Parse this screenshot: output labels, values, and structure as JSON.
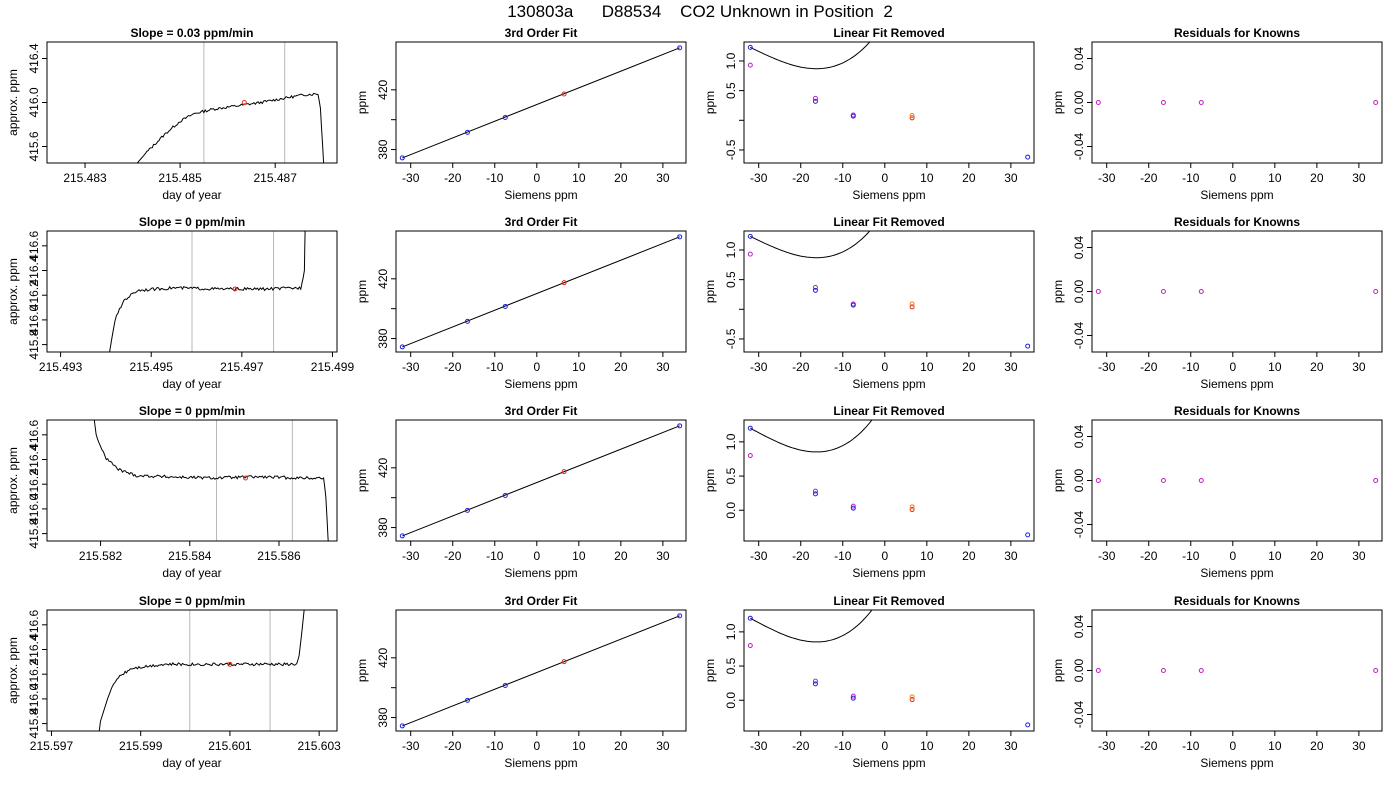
{
  "main_title": "130803a      D88534    CO2 Unknown in Position  2",
  "colors": {
    "known_point": "#2020e0",
    "unknown_point": "#e03020",
    "raw_point": "#c020c0",
    "unknown_alt": "#f08020",
    "vline": "#b8b8b8",
    "curve": "#000000"
  },
  "chart_data": [
    {
      "type": "line",
      "row": 1,
      "title": "Slope =  0.03  ppm/min",
      "xlabel": "day of year",
      "ylabel": "approx. ppm",
      "xlim": [
        215.4822,
        215.4883
      ],
      "ylim": [
        415.45,
        416.55
      ],
      "xticks": [
        215.483,
        215.485,
        215.487
      ],
      "xtick_labels": [
        "215.483",
        "215.485",
        "215.487"
      ],
      "yticks": [
        415.6,
        416.0,
        416.4
      ],
      "ytick_labels": [
        "415.6",
        "416.0",
        "416.4"
      ],
      "vlines": [
        215.4855,
        215.4872
      ],
      "marker": {
        "x": 215.48635,
        "y": 416.0
      },
      "trace": [
        [
          215.4838,
          415.3
        ],
        [
          215.4843,
          415.55
        ],
        [
          215.4847,
          415.72
        ],
        [
          215.485,
          415.83
        ],
        [
          215.4853,
          415.9
        ],
        [
          215.4857,
          415.94
        ],
        [
          215.4862,
          415.97
        ],
        [
          215.4867,
          416.0
        ],
        [
          215.4872,
          416.04
        ],
        [
          215.4876,
          416.07
        ],
        [
          215.4879,
          416.08
        ],
        [
          215.48795,
          415.95
        ],
        [
          215.488,
          415.6
        ],
        [
          215.48805,
          415.2
        ]
      ],
      "noise": 0.012
    },
    {
      "type": "scatter",
      "row": 1,
      "title": "3rd Order Fit",
      "xlabel": "Siemens ppm",
      "ylabel": "ppm",
      "xlim": [
        -33.5,
        35.5
      ],
      "ylim": [
        371,
        452
      ],
      "xticks": [
        -30,
        -20,
        -10,
        0,
        10,
        20,
        30
      ],
      "xtick_labels": [
        "-30",
        "-20",
        "-10",
        "0",
        "10",
        "20",
        "30"
      ],
      "yticks": [
        380,
        400,
        420
      ],
      "ytick_labels": [
        "380",
        "",
        "420"
      ],
      "fit_line": [
        [
          -32,
          374.4
        ],
        [
          34,
          448.1
        ]
      ],
      "known_points": [
        [
          -32,
          374.4
        ],
        [
          -16.5,
          391.5
        ],
        [
          -7.5,
          401.5
        ],
        [
          34,
          448.1
        ]
      ],
      "unknown_points": [
        [
          6.5,
          417.2
        ]
      ]
    },
    {
      "type": "scatter",
      "row": 1,
      "title": "Linear Fit Removed",
      "xlabel": "Siemens ppm",
      "ylabel": "ppm",
      "xlim": [
        -33.5,
        35.5
      ],
      "ylim": [
        -0.72,
        1.32
      ],
      "xticks": [
        -30,
        -20,
        -10,
        0,
        10,
        20,
        30
      ],
      "xtick_labels": [
        "-30",
        "-20",
        "-10",
        "0",
        "10",
        "20",
        "30"
      ],
      "yticks": [
        -0.5,
        0.0,
        0.5,
        1.0
      ],
      "ytick_labels": [
        "-0.5",
        "",
        "0.5",
        "1.0"
      ],
      "curve": [
        -32.0,
        1.23,
        -0.0344,
        0.0,
        4.65e-05
      ],
      "known_points": [
        [
          -32,
          1.23
        ],
        [
          -16.5,
          0.32
        ],
        [
          -7.5,
          0.07
        ],
        [
          34,
          -0.62
        ]
      ],
      "raw_points": [
        [
          -32,
          0.93
        ],
        [
          -16.5,
          0.37
        ],
        [
          -7.5,
          0.09
        ]
      ],
      "unknown_points": [
        [
          6.5,
          0.04
        ],
        [
          6.5,
          0.08
        ]
      ]
    },
    {
      "type": "scatter",
      "row": 1,
      "title": "Residuals for Knowns",
      "xlabel": "Siemens ppm",
      "ylabel": "ppm",
      "xlim": [
        -33.5,
        35.5
      ],
      "ylim": [
        -0.055,
        0.055
      ],
      "xticks": [
        -30,
        -20,
        -10,
        0,
        10,
        20,
        30
      ],
      "xtick_labels": [
        "-30",
        "-20",
        "-10",
        "0",
        "10",
        "20",
        "30"
      ],
      "yticks": [
        -0.04,
        0.0,
        0.04
      ],
      "ytick_labels": [
        "-0.04",
        "0.00",
        "0.04"
      ],
      "raw_points": [
        [
          -32,
          0
        ],
        [
          -16.5,
          0
        ],
        [
          -7.5,
          0
        ],
        [
          34,
          0
        ]
      ]
    },
    {
      "type": "line",
      "row": 2,
      "title": "Slope =  0  ppm/min",
      "xlabel": "day of year",
      "ylabel": "approx. ppm",
      "xlim": [
        215.4927,
        215.4991
      ],
      "ylim": [
        415.74,
        416.72
      ],
      "xticks": [
        215.493,
        215.495,
        215.497,
        215.499
      ],
      "xtick_labels": [
        "215.493",
        "215.495",
        "215.497",
        "215.499"
      ],
      "yticks": [
        415.8,
        416.0,
        416.2,
        416.4,
        416.6
      ],
      "ytick_labels": [
        "415.8",
        "416.0",
        "416.2",
        "416.4",
        "416.6"
      ],
      "vlines": [
        215.4959,
        215.4977
      ],
      "marker": {
        "x": 215.49685,
        "y": 416.25
      },
      "trace": [
        [
          215.494,
          415.55
        ],
        [
          215.4941,
          415.78
        ],
        [
          215.4942,
          416.0
        ],
        [
          215.4944,
          416.16
        ],
        [
          215.4947,
          416.24
        ],
        [
          215.4955,
          416.26
        ],
        [
          215.4965,
          416.25
        ],
        [
          215.4975,
          416.25
        ],
        [
          215.4983,
          416.26
        ],
        [
          215.49838,
          416.4
        ],
        [
          215.4984,
          416.8
        ]
      ],
      "noise": 0.012
    },
    {
      "type": "scatter",
      "row": 2,
      "title": "3rd Order Fit",
      "xlabel": "Siemens ppm",
      "ylabel": "ppm",
      "xlim": [
        -33.5,
        35.5
      ],
      "ylim": [
        371,
        452
      ],
      "xticks": [
        -30,
        -20,
        -10,
        0,
        10,
        20,
        30
      ],
      "xtick_labels": [
        "-30",
        "-20",
        "-10",
        "0",
        "10",
        "20",
        "30"
      ],
      "yticks": [
        380,
        400,
        420
      ],
      "ytick_labels": [
        "380",
        "",
        "420"
      ],
      "fit_line": [
        [
          -32,
          374.4
        ],
        [
          34,
          448.1
        ]
      ],
      "known_points": [
        [
          -32,
          374.4
        ],
        [
          -16.5,
          391.5
        ],
        [
          -7.5,
          401.5
        ],
        [
          34,
          448.1
        ]
      ],
      "unknown_points": [
        [
          6.5,
          417.4
        ]
      ]
    },
    {
      "type": "scatter",
      "row": 2,
      "title": "Linear Fit Removed",
      "xlabel": "Siemens ppm",
      "ylabel": "ppm",
      "xlim": [
        -33.5,
        35.5
      ],
      "ylim": [
        -0.72,
        1.32
      ],
      "xticks": [
        -30,
        -20,
        -10,
        0,
        10,
        20,
        30
      ],
      "xtick_labels": [
        "-30",
        "-20",
        "-10",
        "0",
        "10",
        "20",
        "30"
      ],
      "yticks": [
        -0.5,
        0.0,
        0.5,
        1.0
      ],
      "ytick_labels": [
        "-0.5",
        "",
        "0.5",
        "1.0"
      ],
      "curve": [
        -32.0,
        1.23,
        -0.0344,
        0.0,
        4.65e-05
      ],
      "known_points": [
        [
          -32,
          1.23
        ],
        [
          -16.5,
          0.32
        ],
        [
          -7.5,
          0.07
        ],
        [
          34,
          -0.62
        ]
      ],
      "raw_points": [
        [
          -32,
          0.93
        ],
        [
          -16.5,
          0.37
        ],
        [
          -7.5,
          0.09
        ]
      ],
      "unknown_points": [
        [
          6.5,
          0.04
        ],
        [
          6.5,
          0.09
        ]
      ]
    },
    {
      "type": "scatter",
      "row": 2,
      "title": "Residuals for Knowns",
      "xlabel": "Siemens ppm",
      "ylabel": "ppm",
      "xlim": [
        -33.5,
        35.5
      ],
      "ylim": [
        -0.055,
        0.055
      ],
      "xticks": [
        -30,
        -20,
        -10,
        0,
        10,
        20,
        30
      ],
      "xtick_labels": [
        "-30",
        "-20",
        "-10",
        "0",
        "10",
        "20",
        "30"
      ],
      "yticks": [
        -0.04,
        0.0,
        0.04
      ],
      "ytick_labels": [
        "-0.04",
        "0.00",
        "0.04"
      ],
      "raw_points": [
        [
          -32,
          0
        ],
        [
          -16.5,
          0
        ],
        [
          -7.5,
          0
        ],
        [
          34,
          0
        ]
      ]
    },
    {
      "type": "line",
      "row": 3,
      "title": "Slope =  0  ppm/min",
      "xlabel": "day of year",
      "ylabel": "approx. ppm",
      "xlim": [
        215.5808,
        215.5873
      ],
      "ylim": [
        415.74,
        416.72
      ],
      "xticks": [
        215.582,
        215.584,
        215.586
      ],
      "xtick_labels": [
        "215.582",
        "215.584",
        "215.586"
      ],
      "yticks": [
        415.8,
        416.0,
        416.2,
        416.4,
        416.6
      ],
      "ytick_labels": [
        "415.8",
        "416.0",
        "416.2",
        "416.4",
        "416.6"
      ],
      "vlines": [
        215.5846,
        215.5863
      ],
      "marker": {
        "x": 215.58525,
        "y": 416.25
      },
      "trace": [
        [
          215.5818,
          416.9
        ],
        [
          215.5819,
          416.6
        ],
        [
          215.5821,
          416.42
        ],
        [
          215.5824,
          416.32
        ],
        [
          215.5828,
          416.27
        ],
        [
          215.5835,
          416.26
        ],
        [
          215.5845,
          416.25
        ],
        [
          215.5855,
          416.26
        ],
        [
          215.5865,
          416.25
        ],
        [
          215.587,
          416.25
        ],
        [
          215.58705,
          416.1
        ],
        [
          215.5871,
          415.75
        ],
        [
          215.58715,
          415.6
        ]
      ],
      "noise": 0.012
    },
    {
      "type": "scatter",
      "row": 3,
      "title": "3rd Order Fit",
      "xlabel": "Siemens ppm",
      "ylabel": "ppm",
      "xlim": [
        -33.5,
        35.5
      ],
      "ylim": [
        371,
        452
      ],
      "xticks": [
        -30,
        -20,
        -10,
        0,
        10,
        20,
        30
      ],
      "xtick_labels": [
        "-30",
        "-20",
        "-10",
        "0",
        "10",
        "20",
        "30"
      ],
      "yticks": [
        380,
        400,
        420
      ],
      "ytick_labels": [
        "380",
        "",
        "420"
      ],
      "fit_line": [
        [
          -32,
          374.4
        ],
        [
          34,
          448.1
        ]
      ],
      "known_points": [
        [
          -32,
          374.4
        ],
        [
          -16.5,
          391.5
        ],
        [
          -7.5,
          401.5
        ],
        [
          34,
          448.1
        ]
      ],
      "unknown_points": [
        [
          6.5,
          417.4
        ]
      ]
    },
    {
      "type": "scatter",
      "row": 3,
      "title": "Linear Fit Removed",
      "xlabel": "Siemens ppm",
      "ylabel": "ppm",
      "xlim": [
        -33.5,
        35.5
      ],
      "ylim": [
        -0.45,
        1.32
      ],
      "xticks": [
        -30,
        -20,
        -10,
        0,
        10,
        20,
        30
      ],
      "xtick_labels": [
        "-30",
        "-20",
        "-10",
        "0",
        "10",
        "20",
        "30"
      ],
      "yticks": [
        0.0,
        0.5,
        1.0
      ],
      "ytick_labels": [
        "0.0",
        "0.5",
        "1.0"
      ],
      "curve": [
        -32.0,
        1.2,
        -0.0331,
        0.0,
        4.45e-05
      ],
      "known_points": [
        [
          -32,
          1.2
        ],
        [
          -16.5,
          0.24
        ],
        [
          -7.5,
          0.03
        ],
        [
          34,
          -0.36
        ]
      ],
      "raw_points": [
        [
          -32,
          0.8
        ],
        [
          -16.5,
          0.28
        ],
        [
          -7.5,
          0.06
        ]
      ],
      "unknown_points": [
        [
          6.5,
          0.01
        ],
        [
          6.5,
          0.05
        ]
      ]
    },
    {
      "type": "scatter",
      "row": 3,
      "title": "Residuals for Knowns",
      "xlabel": "Siemens ppm",
      "ylabel": "ppm",
      "xlim": [
        -33.5,
        35.5
      ],
      "ylim": [
        -0.055,
        0.055
      ],
      "xticks": [
        -30,
        -20,
        -10,
        0,
        10,
        20,
        30
      ],
      "xtick_labels": [
        "-30",
        "-20",
        "-10",
        "0",
        "10",
        "20",
        "30"
      ],
      "yticks": [
        -0.04,
        0.0,
        0.04
      ],
      "ytick_labels": [
        "-0.04",
        "0.00",
        "0.04"
      ],
      "raw_points": [
        [
          -32,
          0
        ],
        [
          -16.5,
          0
        ],
        [
          -7.5,
          0
        ],
        [
          34,
          0
        ]
      ]
    },
    {
      "type": "line",
      "row": 4,
      "title": "Slope =  0  ppm/min",
      "xlabel": "day of year",
      "ylabel": "approx. ppm",
      "xlim": [
        215.5969,
        215.6034
      ],
      "ylim": [
        415.74,
        416.72
      ],
      "xticks": [
        215.597,
        215.599,
        215.601,
        215.603
      ],
      "xtick_labels": [
        "215.597",
        "215.599",
        "215.601",
        "215.603"
      ],
      "yticks": [
        415.8,
        416.0,
        416.2,
        416.4,
        416.6
      ],
      "ytick_labels": [
        "415.8",
        "416.0",
        "416.2",
        "416.4",
        "416.6"
      ],
      "vlines": [
        215.6001,
        215.6019
      ],
      "marker": {
        "x": 215.601,
        "y": 416.28
      },
      "trace": [
        [
          215.598,
          415.55
        ],
        [
          215.5981,
          415.82
        ],
        [
          215.5983,
          416.05
        ],
        [
          215.5985,
          416.18
        ],
        [
          215.5988,
          416.25
        ],
        [
          215.5995,
          416.28
        ],
        [
          215.6005,
          416.28
        ],
        [
          215.6015,
          416.28
        ],
        [
          215.6025,
          416.28
        ],
        [
          215.60255,
          416.35
        ],
        [
          215.60263,
          416.6
        ],
        [
          215.6027,
          416.85
        ]
      ],
      "noise": 0.012
    },
    {
      "type": "scatter",
      "row": 4,
      "title": "3rd Order Fit",
      "xlabel": "Siemens ppm",
      "ylabel": "ppm",
      "xlim": [
        -33.5,
        35.5
      ],
      "ylim": [
        371,
        452
      ],
      "xticks": [
        -30,
        -20,
        -10,
        0,
        10,
        20,
        30
      ],
      "xtick_labels": [
        "-30",
        "-20",
        "-10",
        "0",
        "10",
        "20",
        "30"
      ],
      "yticks": [
        380,
        400,
        420
      ],
      "ytick_labels": [
        "380",
        "",
        "420"
      ],
      "fit_line": [
        [
          -32,
          374.4
        ],
        [
          34,
          448.1
        ]
      ],
      "known_points": [
        [
          -32,
          374.4
        ],
        [
          -16.5,
          391.5
        ],
        [
          -7.5,
          401.5
        ],
        [
          34,
          448.1
        ]
      ],
      "unknown_points": [
        [
          6.5,
          417.4
        ]
      ]
    },
    {
      "type": "scatter",
      "row": 4,
      "title": "Linear Fit Removed",
      "xlabel": "Siemens ppm",
      "ylabel": "ppm",
      "xlim": [
        -33.5,
        35.5
      ],
      "ylim": [
        -0.45,
        1.32
      ],
      "xticks": [
        -30,
        -20,
        -10,
        0,
        10,
        20,
        30
      ],
      "xtick_labels": [
        "-30",
        "-20",
        "-10",
        "0",
        "10",
        "20",
        "30"
      ],
      "yticks": [
        0.0,
        0.5,
        1.0
      ],
      "ytick_labels": [
        "0.0",
        "0.5",
        "1.0"
      ],
      "curve": [
        -32.0,
        1.2,
        -0.0331,
        0.0,
        4.45e-05
      ],
      "known_points": [
        [
          -32,
          1.2
        ],
        [
          -16.5,
          0.24
        ],
        [
          -7.5,
          0.03
        ],
        [
          34,
          -0.36
        ]
      ],
      "raw_points": [
        [
          -32,
          0.8
        ],
        [
          -16.5,
          0.28
        ],
        [
          -7.5,
          0.06
        ]
      ],
      "unknown_points": [
        [
          6.5,
          0.01
        ],
        [
          6.5,
          0.05
        ]
      ]
    },
    {
      "type": "scatter",
      "row": 4,
      "title": "Residuals for Knowns",
      "xlabel": "Siemens ppm",
      "ylabel": "ppm",
      "xlim": [
        -33.5,
        35.5
      ],
      "ylim": [
        -0.055,
        0.055
      ],
      "xticks": [
        -30,
        -20,
        -10,
        0,
        10,
        20,
        30
      ],
      "xtick_labels": [
        "-30",
        "-20",
        "-10",
        "0",
        "10",
        "20",
        "30"
      ],
      "yticks": [
        -0.04,
        0.0,
        0.04
      ],
      "ytick_labels": [
        "-0.04",
        "0.00",
        "0.04"
      ],
      "raw_points": [
        [
          -32,
          0
        ],
        [
          -16.5,
          0
        ],
        [
          -7.5,
          0
        ],
        [
          34,
          0
        ]
      ]
    }
  ]
}
